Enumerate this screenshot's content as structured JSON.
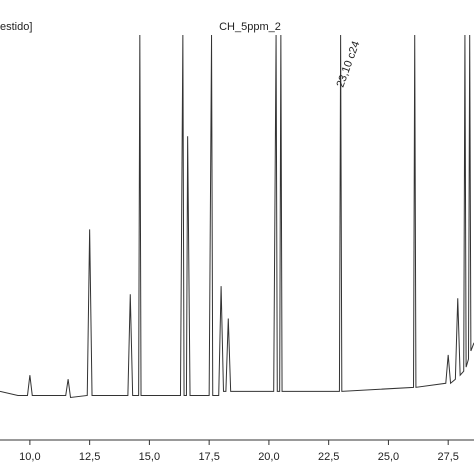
{
  "chart_data": {
    "type": "line",
    "title": "CH_5ppm_2",
    "subtitle": "estido]",
    "annotation": {
      "x": 23.1,
      "text": "23,10 c24"
    },
    "color": "#333333",
    "x": [
      8.75,
      9.5,
      9.9,
      10.0,
      10.1,
      11.5,
      11.6,
      11.7,
      12.4,
      12.5,
      12.6,
      14.1,
      14.2,
      14.3,
      14.55,
      14.6,
      14.65,
      16.3,
      16.4,
      16.45,
      16.55,
      16.6,
      16.7,
      17.5,
      17.6,
      17.65,
      17.9,
      18.0,
      18.1,
      18.2,
      18.3,
      18.4,
      20.2,
      20.3,
      20.35,
      20.45,
      20.5,
      20.55,
      22.95,
      23.0,
      23.05,
      26.05,
      26.1,
      26.15,
      27.4,
      27.5,
      27.6,
      27.8,
      27.9,
      28.0,
      28.15,
      28.2,
      28.25,
      28.35,
      28.4,
      28.45,
      28.58
    ],
    "y": [
      12,
      11,
      11,
      16,
      11,
      11,
      15,
      10.5,
      11,
      52,
      11,
      11,
      36,
      11,
      11,
      100,
      11,
      11,
      100,
      11,
      11,
      75,
      11,
      11,
      100,
      11,
      11,
      38,
      12,
      12,
      30,
      12,
      12,
      100,
      12,
      12,
      100,
      12,
      12,
      100,
      12,
      13,
      100,
      13,
      14,
      21,
      14,
      15,
      35,
      16,
      17,
      100,
      18,
      20,
      100,
      22,
      24
    ],
    "xlim": [
      8.75,
      28.58
    ],
    "ylim": [
      0,
      100
    ],
    "xticks": [
      {
        "value": 10,
        "label": "10,0"
      },
      {
        "value": 12.5,
        "label": "12,5"
      },
      {
        "value": 15,
        "label": "15,0"
      },
      {
        "value": 17.5,
        "label": "17,5"
      },
      {
        "value": 20,
        "label": "20,0"
      },
      {
        "value": 22.5,
        "label": "22,5"
      },
      {
        "value": 25,
        "label": "25,0"
      },
      {
        "value": 27.5,
        "label": "27,5"
      }
    ]
  }
}
